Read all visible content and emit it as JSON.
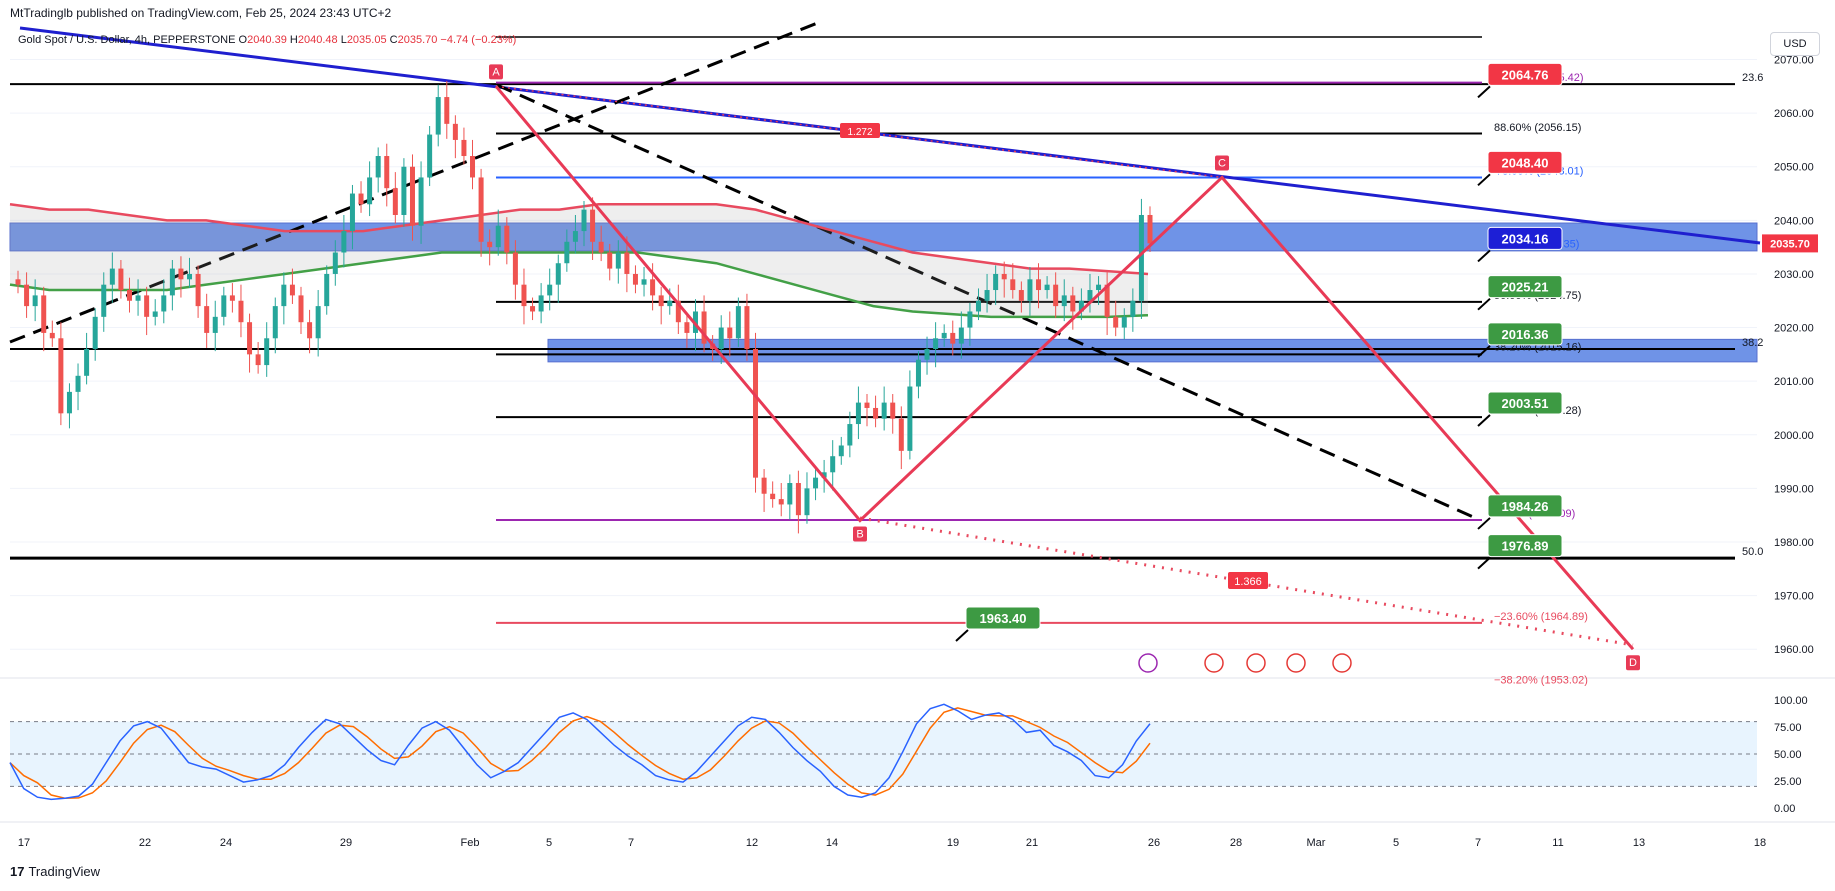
{
  "header": {
    "published_by": "MtTradinglb published on TradingView.com, Feb 25, 2024 23:43 UTC+2",
    "symbol": "Gold Spot / U.S. Dollar, 4h, PEPPERSTONE",
    "ohlc": {
      "o_label": "O",
      "o": "2040.39",
      "h_label": "H",
      "h": "2040.48",
      "l_label": "L",
      "l": "2035.05",
      "c_label": "C",
      "c": "2035.70",
      "change": "−4.74 (−0.23%)"
    },
    "currency": "USD"
  },
  "brand": {
    "logo": "17",
    "name": "TradingView"
  },
  "colors": {
    "bull": "#26a69a",
    "bear": "#ef5350",
    "price_tag": "#f23645",
    "blue_zone": "#3f6fe0",
    "trend": "#1f1fcf",
    "pattern": "#e83a56",
    "ema_red": "#e84a5f",
    "ema_green": "#43a047",
    "fib_purple": "#9c27b0",
    "stoch_k": "#2962ff",
    "stoch_d": "#ff6d00"
  },
  "chart_data": {
    "type": "line",
    "title": "Gold Spot / U.S. Dollar, 4h",
    "y_range": [
      1955,
      2077
    ],
    "y_ticks": [
      "2070.00",
      "2060.00",
      "2050.00",
      "2040.00",
      "2030.00",
      "2020.00",
      "2010.00",
      "2000.00",
      "1990.00",
      "1980.00",
      "1970.00",
      "1960.00"
    ],
    "x_ticks": [
      "17",
      "22",
      "24",
      "29",
      "Feb",
      "5",
      "7",
      "12",
      "14",
      "19",
      "21",
      "26",
      "28",
      "Mar",
      "5",
      "7",
      "11",
      "13",
      "18"
    ],
    "current_price": "2035.70",
    "close_series": [
      2028,
      2024,
      2026,
      2019,
      2018,
      2004,
      2008,
      2011,
      2016,
      2022,
      2028,
      2031,
      2027,
      2025,
      2026,
      2022,
      2023,
      2026,
      2031,
      2029,
      2030,
      2024,
      2019,
      2022,
      2026,
      2025,
      2021,
      2015,
      2013,
      2018,
      2024,
      2028,
      2026,
      2021,
      2018,
      2024,
      2030,
      2034,
      2038,
      2045,
      2043,
      2048,
      2052,
      2046,
      2041,
      2050,
      2039,
      2048,
      2056,
      2063,
      2058,
      2055,
      2052,
      2048,
      2036,
      2035,
      2039,
      2034,
      2028,
      2024,
      2023,
      2026,
      2028,
      2032,
      2036,
      2038,
      2042,
      2036,
      2034,
      2031,
      2034,
      2030,
      2028,
      2029,
      2026,
      2024,
      2025,
      2021,
      2019,
      2023,
      2017,
      2016,
      2020,
      2018,
      2024,
      2016,
      1992,
      1989,
      1988,
      1987,
      1991,
      1985,
      1990,
      1992,
      1993,
      1996,
      1998,
      2002,
      2006,
      2005,
      2003,
      2006,
      2003,
      1997,
      2009,
      2014,
      2016,
      2018,
      2019,
      2017,
      2020,
      2023,
      2025,
      2027,
      2030,
      2029,
      2027,
      2025,
      2029,
      2027,
      2028,
      2024,
      2026,
      2023,
      2025,
      2027,
      2028,
      2022,
      2020,
      2022,
      2025,
      2041,
      2035.7
    ],
    "ema_red": [
      2043,
      2042,
      2042,
      2041,
      2040,
      2040,
      2039,
      2038,
      2038,
      2038,
      2039,
      2040,
      2041,
      2042,
      2042,
      2043,
      2043,
      2043,
      2043,
      2042,
      2040,
      2038,
      2036,
      2034,
      2033,
      2032,
      2031,
      2031,
      2030.5,
      2030
    ],
    "ema_green": [
      2028,
      2027,
      2027,
      2027,
      2027,
      2028,
      2029,
      2030,
      2031,
      2032,
      2033,
      2034,
      2034,
      2034,
      2034,
      2034,
      2034,
      2033,
      2032,
      2030,
      2028,
      2026,
      2024,
      2023,
      2022.5,
      2022,
      2022,
      2022,
      2022,
      2022.3
    ],
    "horizontal_levels": [
      {
        "label": "23.6",
        "price": 2065.4
      },
      {
        "label": "88.60% (2056.15)",
        "price": 2056.15
      },
      {
        "label": "78.60% (2048.01)",
        "price": 2048.01
      },
      {
        "label": "61.80% (2034.35)",
        "price": 2034.35
      },
      {
        "label": "50.00% (2024.75)",
        "price": 2024.75
      },
      {
        "label": "38.20% (2015.16)",
        "price": 2015.16
      },
      {
        "label": "23.60% (2003.28)",
        "price": 2003.28
      },
      {
        "label": "0.00% (1984.09)",
        "price": 1984.09
      },
      {
        "label": "50.0",
        "price": 1977
      },
      {
        "label": "−23.60% (1964.89)",
        "price": 1964.89
      },
      {
        "label": "−38.20% (1953.02)",
        "price": 1953.02
      },
      {
        "label": "100.00% (2065.42)",
        "price": 2065.42
      },
      {
        "label": "38.2",
        "price": 2016
      }
    ],
    "price_tags": [
      {
        "text": "2064.76",
        "style": "red"
      },
      {
        "text": "2048.40",
        "style": "red"
      },
      {
        "text": "2034.16",
        "style": "blue"
      },
      {
        "text": "2025.21",
        "style": "green"
      },
      {
        "text": "2016.36",
        "style": "green"
      },
      {
        "text": "2003.51",
        "style": "green"
      },
      {
        "text": "1984.26",
        "style": "green"
      },
      {
        "text": "1976.89",
        "style": "green"
      },
      {
        "text": "1963.40",
        "style": "green"
      }
    ],
    "pattern_points": [
      {
        "label": "A",
        "price": 2065
      },
      {
        "label": "B",
        "price": 1984
      },
      {
        "label": "C",
        "price": 2048
      },
      {
        "label": "D",
        "price": 1960
      }
    ],
    "annotations": [
      "1.366",
      "1.272"
    ],
    "oscillator": {
      "name": "Stochastic",
      "y_ticks": [
        "100.00",
        "75.00",
        "50.00",
        "25.00",
        "0.00"
      ],
      "levels": [
        80,
        50,
        20
      ],
      "k": [
        42,
        18,
        10,
        8,
        9,
        11,
        22,
        42,
        62,
        76,
        80,
        74,
        58,
        42,
        38,
        36,
        30,
        24,
        26,
        30,
        40,
        56,
        70,
        82,
        78,
        66,
        54,
        44,
        40,
        58,
        74,
        80,
        72,
        56,
        40,
        28,
        34,
        42,
        56,
        70,
        84,
        88,
        82,
        70,
        58,
        48,
        40,
        30,
        26,
        24,
        34,
        48,
        62,
        76,
        84,
        82,
        70,
        56,
        44,
        34,
        20,
        12,
        10,
        14,
        28,
        52,
        78,
        92,
        96,
        90,
        82,
        86,
        88,
        82,
        70,
        72,
        58,
        52,
        44,
        30,
        28,
        40,
        62,
        78
      ]
    }
  }
}
